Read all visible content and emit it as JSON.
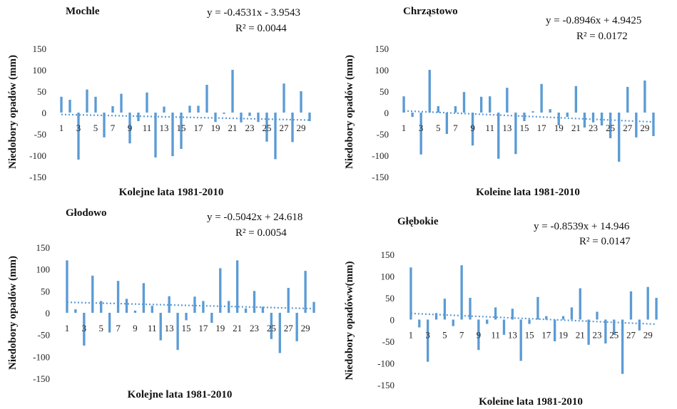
{
  "chart_data": [
    {
      "type": "bar",
      "title": "Mochle",
      "xlabel": "Kolejne lata 1981-2010",
      "ylabel": "Niedobory opadów  (mm)",
      "ylim": [
        -150,
        150
      ],
      "yticks": [
        150,
        100,
        50,
        0,
        -50,
        -100,
        -150
      ],
      "categories": [
        1,
        2,
        3,
        4,
        5,
        6,
        7,
        8,
        9,
        10,
        11,
        12,
        13,
        14,
        15,
        16,
        17,
        18,
        19,
        20,
        21,
        22,
        23,
        24,
        25,
        26,
        27,
        28,
        29,
        30
      ],
      "xtick_labels": [
        "1",
        "3",
        "5",
        "7",
        "9",
        "11",
        "13",
        "15",
        "17",
        "19",
        "21",
        "23",
        "25",
        "27",
        "29"
      ],
      "values": [
        37,
        30,
        -110,
        54,
        37,
        -58,
        15,
        44,
        -72,
        -20,
        47,
        -105,
        14,
        -102,
        -85,
        16,
        16,
        65,
        -22,
        -3,
        100,
        -23,
        -8,
        -22,
        -68,
        -109,
        68,
        -69,
        50,
        -20
      ],
      "trendline": {
        "slope": -0.4531,
        "intercept": -3.9543,
        "style": "dotted"
      },
      "equation": "y = -0.4531x  - 3.9543",
      "r2": "R² = 0.0044",
      "color": "#5b9bd5"
    },
    {
      "type": "bar",
      "title": "Chrząstowo",
      "xlabel": "Koleine lata 1981-2010",
      "ylabel": "Niedobory opadów  (mm)",
      "ylim": [
        -150,
        150
      ],
      "yticks": [
        150,
        100,
        50,
        0,
        -50,
        -100,
        -150
      ],
      "categories": [
        1,
        2,
        3,
        4,
        5,
        6,
        7,
        8,
        9,
        10,
        11,
        12,
        13,
        14,
        15,
        16,
        17,
        18,
        19,
        20,
        21,
        22,
        23,
        24,
        25,
        26,
        27,
        28,
        29,
        30
      ],
      "xtick_labels": [
        "1",
        "3",
        "5",
        "7",
        "9",
        "11",
        "13",
        "15",
        "17",
        "19",
        "21",
        "23",
        "25",
        "27",
        "29"
      ],
      "values": [
        38,
        -10,
        -98,
        100,
        15,
        -50,
        15,
        48,
        -77,
        37,
        38,
        -108,
        58,
        -97,
        -20,
        3,
        67,
        8,
        -30,
        -10,
        62,
        -35,
        -23,
        -30,
        -60,
        -115,
        60,
        -58,
        75,
        -55
      ],
      "trendline": {
        "slope": -0.8946,
        "intercept": 4.9425,
        "style": "dotted"
      },
      "equation": "y = -0.8946x  + 4.9425",
      "r2": "R² = 0.0172",
      "color": "#5b9bd5"
    },
    {
      "type": "bar",
      "title": "Głodowo",
      "xlabel": "Kolejne lata 1981-2010",
      "ylabel": "Niedobory opadów  (mm)",
      "ylim": [
        -150,
        150
      ],
      "yticks": [
        150,
        100,
        50,
        0,
        -50,
        -100,
        -150
      ],
      "categories": [
        1,
        2,
        3,
        4,
        5,
        6,
        7,
        8,
        9,
        10,
        11,
        12,
        13,
        14,
        15,
        16,
        17,
        18,
        19,
        20,
        21,
        22,
        23,
        24,
        25,
        26,
        27,
        28,
        29,
        30
      ],
      "xtick_labels": [
        "1",
        "3",
        "5",
        "7",
        "9",
        "11",
        "13",
        "15",
        "17",
        "19",
        "21",
        "23",
        "25",
        "27",
        "29"
      ],
      "values": [
        120,
        8,
        -75,
        85,
        27,
        -45,
        73,
        32,
        5,
        68,
        16,
        -63,
        38,
        -85,
        -17,
        37,
        27,
        -23,
        102,
        27,
        120,
        10,
        50,
        14,
        -60,
        -92,
        57,
        -65,
        96,
        25
      ],
      "trendline": {
        "slope": -0.5042,
        "intercept": 24.618,
        "style": "dotted"
      },
      "equation": "y = -0.5042x  + 24.618",
      "r2": "R² = 0.0054",
      "color": "#5b9bd5"
    },
    {
      "type": "bar",
      "title": "Głębokie",
      "xlabel": "Koleine lata 1981-2010",
      "ylabel": "Niedobory opadóww(mm)",
      "ylim": [
        -150,
        150
      ],
      "yticks": [
        150,
        100,
        50,
        0,
        -50,
        -100,
        -150
      ],
      "categories": [
        1,
        2,
        3,
        4,
        5,
        6,
        7,
        8,
        9,
        10,
        11,
        12,
        13,
        14,
        15,
        16,
        17,
        18,
        19,
        20,
        21,
        22,
        23,
        24,
        25,
        26,
        27,
        28,
        29,
        30
      ],
      "xtick_labels": [
        "1",
        "3",
        "5",
        "7",
        "9",
        "11",
        "13",
        "15",
        "17",
        "19",
        "21",
        "23",
        "25",
        "27",
        "29"
      ],
      "values": [
        120,
        -18,
        -97,
        15,
        48,
        -15,
        125,
        50,
        -70,
        -10,
        28,
        -35,
        25,
        -95,
        -10,
        52,
        8,
        -50,
        8,
        28,
        72,
        -58,
        18,
        -55,
        -35,
        -125,
        65,
        -25,
        75,
        50
      ],
      "trendline": {
        "slope": -0.8539,
        "intercept": 14.946,
        "style": "dotted"
      },
      "equation": "y = -0.8539x  + 14.946",
      "r2": "R² = 0.0147",
      "color": "#5b9bd5"
    }
  ]
}
